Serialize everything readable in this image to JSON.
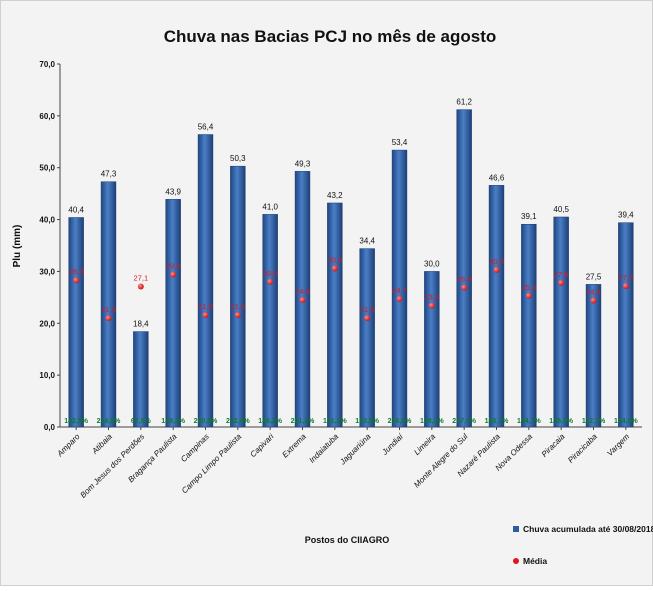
{
  "chart_data": {
    "type": "bar",
    "title": "Chuva nas Bacias PCJ no mês de agosto",
    "xlabel": "Postos do CIIAGRO",
    "ylabel": "Plu (mm)",
    "ylim": [
      0,
      70
    ],
    "yticks": [
      "0,0",
      "10,0",
      "20,0",
      "30,0",
      "40,0",
      "50,0",
      "60,0",
      "70,0"
    ],
    "grid": false,
    "legend_position": "bottom-right",
    "categories": [
      "Amparo",
      "Atibaia",
      "Bom Jesus dos Perdões",
      "Bragança Paulista",
      "Campinas",
      "Campo Limpo Paulista",
      "Capivari",
      "Extrema",
      "Indaiatuba",
      "Jaguariúna",
      "Jundiaí",
      "Limeira",
      "Monte Alegre do Sul",
      "Nazaré Paulista",
      "Nova Odessa",
      "Piracaia",
      "Piracicaba",
      "Vargem"
    ],
    "series": [
      {
        "name": "Chuva acumulada até 30/08/2018",
        "kind": "bar",
        "color": "#2e5d9e",
        "values": [
          40.4,
          47.3,
          18.4,
          43.9,
          56.4,
          50.3,
          41.0,
          49.3,
          43.2,
          34.4,
          53.4,
          30.0,
          61.2,
          46.6,
          39.1,
          40.5,
          27.5,
          39.4
        ],
        "labels": [
          "40,4",
          "47,3",
          "18,4",
          "43,9",
          "56,4",
          "50,3",
          "41,0",
          "49,3",
          "43,2",
          "34,4",
          "53,4",
          "30,0",
          "61,2",
          "46,6",
          "39,1",
          "40,5",
          "27,5",
          "39,4"
        ]
      },
      {
        "name": "Média",
        "kind": "point",
        "color": "#e0161f",
        "values": [
          28.3,
          21.0,
          27.1,
          29.4,
          21.6,
          21.6,
          28.0,
          24.5,
          30.6,
          21.0,
          24.7,
          23.4,
          26.9,
          30.3,
          25.3,
          27.8,
          24.4,
          27.2
        ],
        "labels": [
          "28,3",
          "21,0",
          "27,1",
          "29,4",
          "21,6",
          "21,6",
          "28,0",
          "24,5",
          "30,6",
          "21,0",
          "24,7",
          "23,4",
          "26,9",
          "30,3",
          "25,3",
          "27,8",
          "24,4",
          "27,2"
        ]
      }
    ],
    "percent_labels": [
      "142,5%",
      "224,8%",
      "67,9%",
      "149,2%",
      "260,8%",
      "232,4%",
      "146,2%",
      "201,2%",
      "141,2%",
      "163,5%",
      "216,0%",
      "128,2%",
      "227,5%",
      "153,7%",
      "154,7%",
      "145,9%",
      "112,7%",
      "144,9%"
    ],
    "percent_color": "#0f7b2e"
  }
}
